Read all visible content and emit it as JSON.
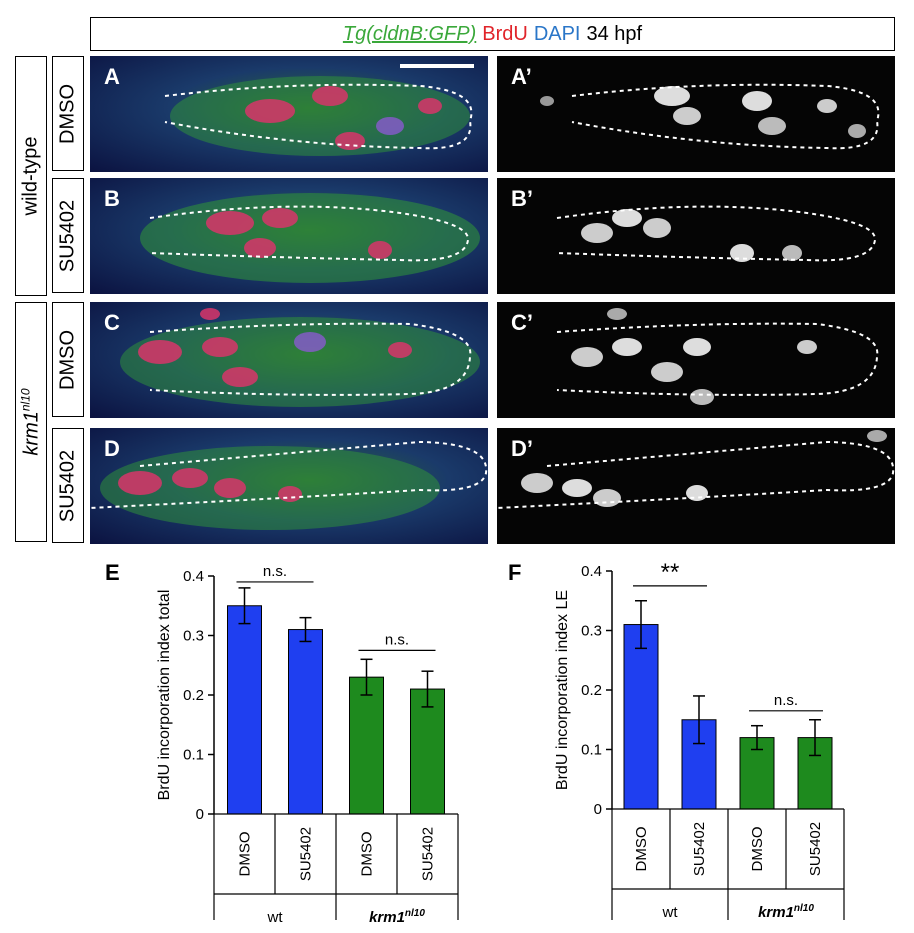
{
  "header": {
    "transgene": "Tg(cldnB:GFP)",
    "marker1": "BrdU",
    "marker2": "DAPI",
    "stage": "34 hpf",
    "colors": {
      "gfp": "#3aa83a",
      "brdu": "#e0242a",
      "dapi": "#2a76c8"
    }
  },
  "rows": {
    "group_wt": "wild-type",
    "group_mut_base": "krm1",
    "group_mut_sup": "nl10",
    "treatments": [
      "DMSO",
      "SU5402",
      "DMSO",
      "SU5402"
    ]
  },
  "panel_labels": {
    "color": [
      "A",
      "B",
      "C",
      "D"
    ],
    "gray": [
      "A’",
      "B’",
      "C’",
      "D’"
    ]
  },
  "chart_data": [
    {
      "type": "bar",
      "panel_letter": "E",
      "ylabel": "BrdU incorporation index total",
      "ylim": [
        0,
        0.4
      ],
      "yticks": [
        "0",
        "0.1",
        "0.2",
        "0.3",
        "0.4"
      ],
      "categories": [
        "DMSO",
        "SU5402",
        "DMSO",
        "SU5402"
      ],
      "values": [
        0.35,
        0.31,
        0.23,
        0.21
      ],
      "errors": [
        0.03,
        0.02,
        0.03,
        0.03
      ],
      "bar_colors": [
        "#1f3ff0",
        "#1f3ff0",
        "#1e8a1e",
        "#1e8a1e"
      ],
      "groups": [
        {
          "label": "wt",
          "italic": false
        },
        {
          "label": "krm1",
          "sup": "nl10",
          "italic": true
        }
      ],
      "significance": [
        {
          "text": "n.s.",
          "from": 0,
          "to": 1,
          "y": 0.39
        },
        {
          "text": "n.s.",
          "from": 2,
          "to": 3,
          "y": 0.275
        }
      ]
    },
    {
      "type": "bar",
      "panel_letter": "F",
      "ylabel": "BrdU incorporation index LE",
      "ylim": [
        0,
        0.4
      ],
      "yticks": [
        "0",
        "0.1",
        "0.2",
        "0.3",
        "0.4"
      ],
      "categories": [
        "DMSO",
        "SU5402",
        "DMSO",
        "SU5402"
      ],
      "values": [
        0.31,
        0.15,
        0.12,
        0.12
      ],
      "errors": [
        0.04,
        0.04,
        0.02,
        0.03
      ],
      "bar_colors": [
        "#1f3ff0",
        "#1f3ff0",
        "#1e8a1e",
        "#1e8a1e"
      ],
      "groups": [
        {
          "label": "wt",
          "italic": false
        },
        {
          "label": "krm1",
          "sup": "nl10",
          "italic": true
        }
      ],
      "significance": [
        {
          "text": "**",
          "from": 0,
          "to": 1,
          "y": 0.375
        },
        {
          "text": "n.s.",
          "from": 2,
          "to": 3,
          "y": 0.165
        }
      ]
    }
  ]
}
